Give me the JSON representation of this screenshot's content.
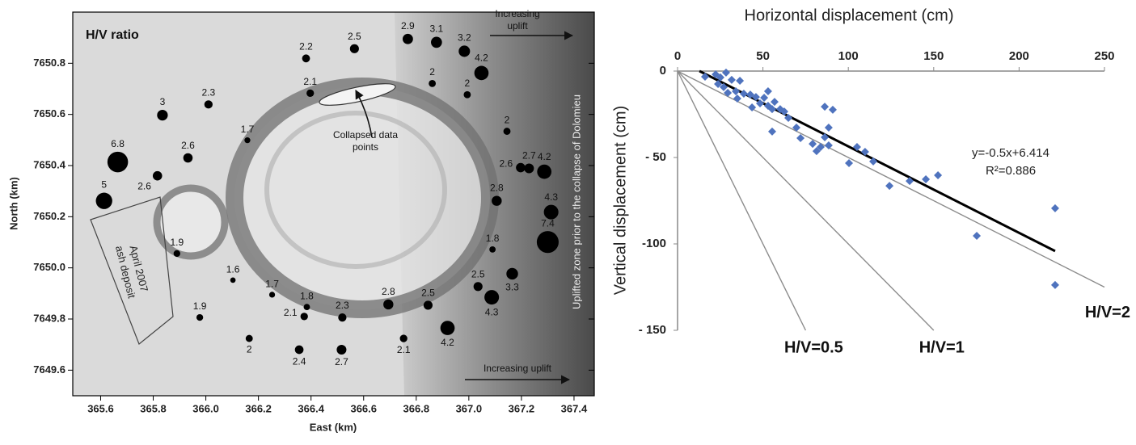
{
  "chart_data": [
    {
      "type": "bubble",
      "title": "H/V ratio",
      "x_label": "East (km)",
      "y_label": "North (km)",
      "xlim": [
        365.494,
        367.477
      ],
      "ylim": [
        7649.5,
        7651.0
      ],
      "xticks": [
        365.6,
        365.8,
        {
          "value": 366,
          "label": "366.0"
        },
        366.2,
        366.4,
        366.6,
        366.8,
        {
          "value": 367,
          "label": "367.0"
        },
        367.2,
        367.4
      ],
      "yticks": [
        7649.6,
        7649.8,
        {
          "value": 7650,
          "label": "7650.0"
        },
        7650.2,
        7650.4,
        7650.6,
        7650.8
      ],
      "series": [
        {
          "color": "#000000",
          "x": [
            366.768,
            366.877,
            366.983,
            367.048,
            366.565,
            366.381,
            366.861,
            366.397,
            366.994,
            366.01,
            365.835,
            366.158,
            367.145,
            365.665,
            365.932,
            365.816,
            365.613,
            367.197,
            367.229,
            367.287,
            367.106,
            367.313,
            367.3,
            367.09,
            365.89,
            366.103,
            367.165,
            367.035,
            367.087,
            366.252,
            366.384,
            366.694,
            366.845,
            366.374,
            366.519,
            365.977,
            366.919,
            366.165,
            366.752,
            366.355,
            366.516
          ],
          "y": [
            7650.895,
            7650.882,
            7650.847,
            7650.762,
            7650.857,
            7650.819,
            7650.721,
            7650.683,
            7650.677,
            7650.639,
            7650.597,
            7650.499,
            7650.534,
            7650.414,
            7650.43,
            7650.36,
            7650.262,
            7650.392,
            7650.389,
            7650.376,
            7650.262,
            7650.218,
            7650.101,
            7650.072,
            7650.056,
            7649.952,
            7649.977,
            7649.927,
            7649.885,
            7649.895,
            7649.847,
            7649.857,
            7649.854,
            7649.81,
            7649.806,
            7649.806,
            7649.765,
            7649.724,
            7649.724,
            7649.68,
            7649.68
          ],
          "values": [
            2.9,
            3.1,
            3.2,
            4.2,
            2.5,
            2.2,
            2,
            2.1,
            2,
            2.3,
            3,
            1.7,
            2,
            6.8,
            2.6,
            2.6,
            5,
            2.6,
            2.7,
            4.2,
            2.8,
            4.3,
            7.4,
            1.8,
            1.9,
            1.6,
            3.3,
            2.5,
            4.3,
            1.7,
            1.8,
            2.8,
            2.5,
            2.1,
            2.3,
            1.9,
            4.2,
            2,
            2.1,
            2.4,
            2.7
          ]
        }
      ],
      "uplift_top": [
        "Increasing",
        "uplift"
      ],
      "uplift_bottom": "Increasing uplift",
      "collapsed_label": [
        "Collapsed data",
        "points"
      ],
      "ash_label": [
        "April 2007",
        "ash deposit"
      ],
      "zone_label": "Uplifted zone prior to the collapse of Dolomieu"
    },
    {
      "type": "scatter",
      "x_label": "Horizontal displacement (cm)",
      "y_label": "Vertical displacement (cm)",
      "xlim": [
        0,
        250
      ],
      "ylim": [
        -150,
        0
      ],
      "xticks": [
        0,
        50,
        100,
        150,
        200,
        250
      ],
      "yticks": [
        {
          "value": -150,
          "label": "- 150"
        },
        -100,
        {
          "value": -50,
          "label": "- 50"
        },
        0
      ],
      "series": [
        {
          "color": "#4f73be",
          "x": [
            16.1,
            22.3,
            25.1,
            28.4,
            31.7,
            36.5,
            23.7,
            27.0,
            29.4,
            34.1,
            38.8,
            42.6,
            45.9,
            50.7,
            53.0,
            56.8,
            48.3,
            43.6,
            35.0,
            53.0,
            55.4,
            60.1,
            62.5,
            64.9,
            69.6,
            55.4,
            72.0,
            79.1,
            83.8,
            81.4,
            88.5,
            86.2,
            90.9,
            88.5,
            105.1,
            109.8,
            114.6,
            100.4,
            124.1,
            135.9,
            145.4,
            152.5,
            175.2,
            221.1,
            221.1,
            86.2
          ],
          "values": [
            -3.3,
            -1.9,
            -3.7,
            -0.9,
            -5.1,
            -5.6,
            -7.5,
            -9.3,
            -12.6,
            -11.7,
            -13.1,
            -13.6,
            -15.0,
            -15.4,
            -11.7,
            -17.8,
            -18.7,
            -21.0,
            -15.9,
            -20.1,
            -22.0,
            -22.0,
            -23.4,
            -27.1,
            -32.7,
            -35.0,
            -38.8,
            -42.1,
            -43.9,
            -46.3,
            -43.0,
            -20.6,
            -22.4,
            -32.7,
            -43.9,
            -46.7,
            -52.3,
            -53.3,
            -66.4,
            -63.6,
            -62.6,
            -60.3,
            -95.3,
            -79.4,
            -123.8,
            -38.3
          ]
        }
      ],
      "trendline": {
        "color": "#000000",
        "slope": -0.5,
        "intercept": 6.414,
        "equation": "y=-0.5x+6.414",
        "r2": "R²=0.886"
      },
      "ratio_lines": [
        {
          "label": "H/V=0.5",
          "ratio": 0.5
        },
        {
          "label": "H/V=1",
          "ratio": 1
        },
        {
          "label": "H/V=2",
          "ratio": 2
        }
      ],
      "ratio_line_color": "#8c8c8c"
    }
  ]
}
